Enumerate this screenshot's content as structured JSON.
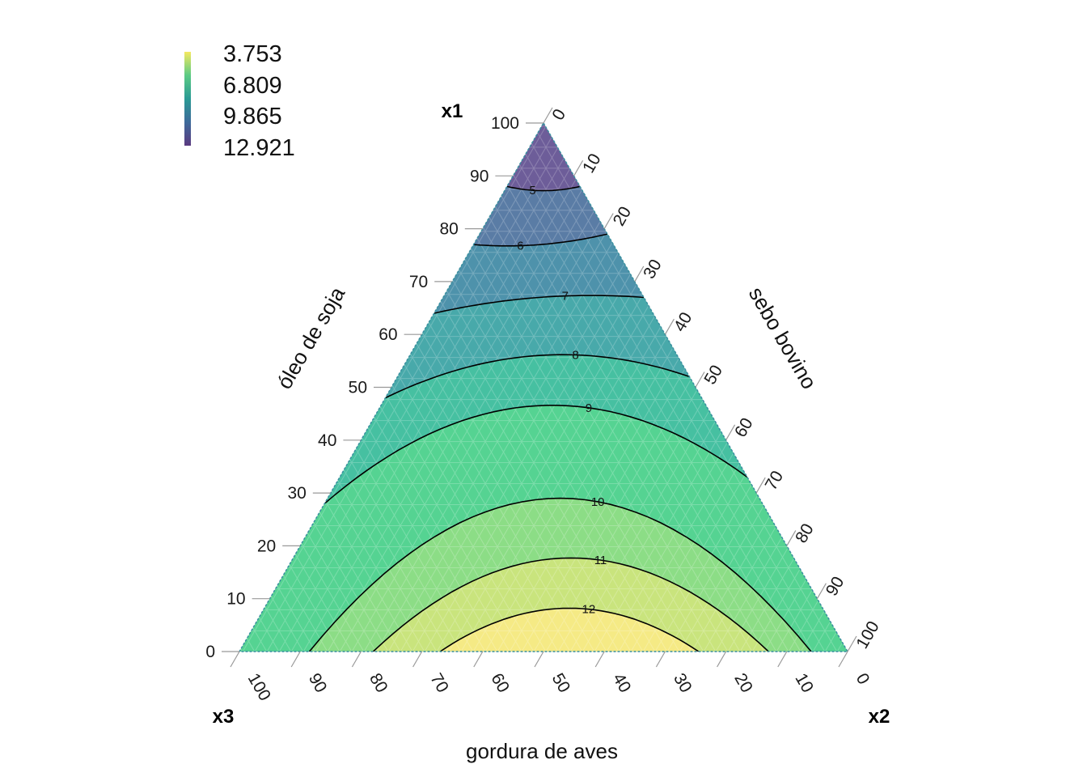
{
  "chart_data": {
    "type": "ternary-contour",
    "vertices": {
      "top": "x1",
      "right": "x2",
      "left": "x3"
    },
    "axes": {
      "left": {
        "title": "óleo de soja",
        "ticks": [
          "0",
          "10",
          "20",
          "30",
          "40",
          "50",
          "60",
          "70",
          "80",
          "90",
          "100"
        ]
      },
      "right": {
        "title": "sebo bovino",
        "ticks": [
          "0",
          "10",
          "20",
          "30",
          "40",
          "50",
          "60",
          "70",
          "80",
          "90",
          "100"
        ]
      },
      "bottom": {
        "title": "gordura de aves",
        "ticks": [
          "100",
          "90",
          "80",
          "70",
          "60",
          "50",
          "40",
          "30",
          "20",
          "10",
          "0"
        ]
      }
    },
    "legend": {
      "position": "top-left",
      "labels": [
        "3.753",
        "6.809",
        "9.865",
        "12.921"
      ]
    },
    "contours": [
      {
        "level": 5,
        "label": "5",
        "left_x1": 0.88,
        "right_x1": 0.88,
        "bow": -0.008
      },
      {
        "level": 6,
        "label": "6",
        "left_x1": 0.77,
        "right_x1": 0.79,
        "bow": -0.01
      },
      {
        "level": 7,
        "label": "7",
        "left_x1": 0.64,
        "right_x1": 0.67,
        "bow": 0.015
      },
      {
        "level": 8,
        "label": "8",
        "left_x1": 0.48,
        "right_x1": 0.52,
        "bow": 0.06
      },
      {
        "level": 9,
        "label": "9",
        "left_x1": 0.28,
        "right_x1": 0.33,
        "bow": 0.16
      },
      {
        "level": 10,
        "label": "10",
        "left_x1": 0.0,
        "right_x1": 0.0,
        "left_x2": 0.115,
        "right_x2": 0.06,
        "bow": 0.29
      },
      {
        "level": 11,
        "label": "11",
        "left_x1": 0.0,
        "right_x1": 0.0,
        "left_x2": 0.22,
        "right_x2": 0.13,
        "bow": 0.177
      },
      {
        "level": 12,
        "label": "12",
        "left_x1": 0.0,
        "right_x1": 0.0,
        "left_x2": 0.33,
        "right_x2": 0.245,
        "bow": 0.082
      }
    ],
    "fill_bands": [
      {
        "below_level": 5,
        "color": "#6f5a98"
      },
      {
        "below_level": 6,
        "color": "#5c7aa4"
      },
      {
        "below_level": 7,
        "color": "#4f8fab"
      },
      {
        "below_level": 8,
        "color": "#48a6ab"
      },
      {
        "below_level": 9,
        "color": "#45bea3"
      },
      {
        "below_level": 10,
        "color": "#4fd293"
      },
      {
        "below_level": 11,
        "color": "#85db87"
      },
      {
        "below_level": 12,
        "color": "#c4e37c"
      },
      {
        "below_level": 99,
        "color": "#f4e878"
      }
    ],
    "legend_gradient": [
      "#f5e960",
      "#5ccb84",
      "#2a9a94",
      "#3d6a9a",
      "#5a3a80"
    ]
  }
}
